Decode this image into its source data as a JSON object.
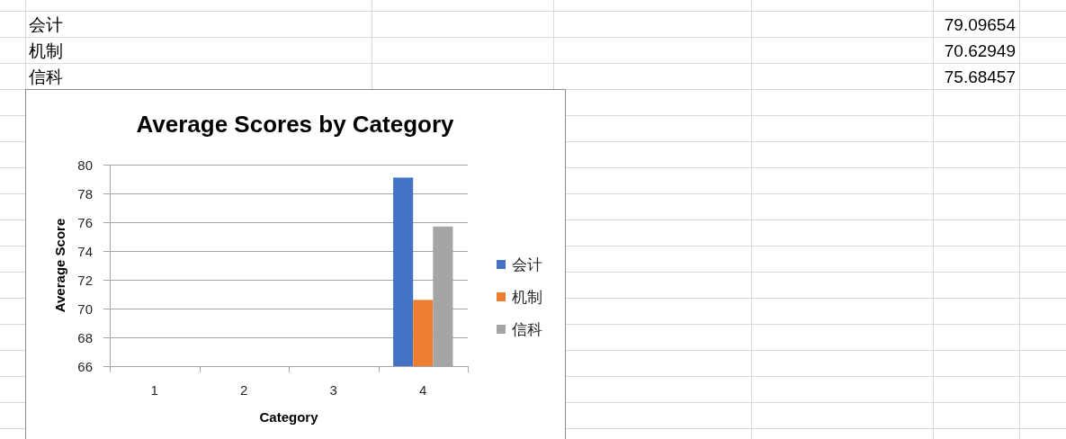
{
  "chart_data": {
    "type": "bar",
    "title": "Average Scores by Category",
    "xlabel": "Category",
    "ylabel": "Average Score",
    "categories": [
      "1",
      "2",
      "3",
      "4"
    ],
    "series": [
      {
        "name": "会计",
        "color": "#4472c4",
        "values": [
          null,
          null,
          null,
          79.1
        ]
      },
      {
        "name": "机制",
        "color": "#ed7d31",
        "values": [
          null,
          null,
          null,
          70.6
        ]
      },
      {
        "name": "信科",
        "color": "#a5a5a5",
        "values": [
          null,
          null,
          null,
          75.7
        ]
      }
    ],
    "ylim": [
      66,
      80
    ],
    "yticks": [
      66,
      68,
      70,
      72,
      74,
      76,
      78,
      80
    ],
    "grid": "y",
    "legend": "right",
    "annotations": [
      "会计",
      "79.09654",
      "机制",
      "70.62949",
      "信科",
      "75.68457"
    ]
  }
}
